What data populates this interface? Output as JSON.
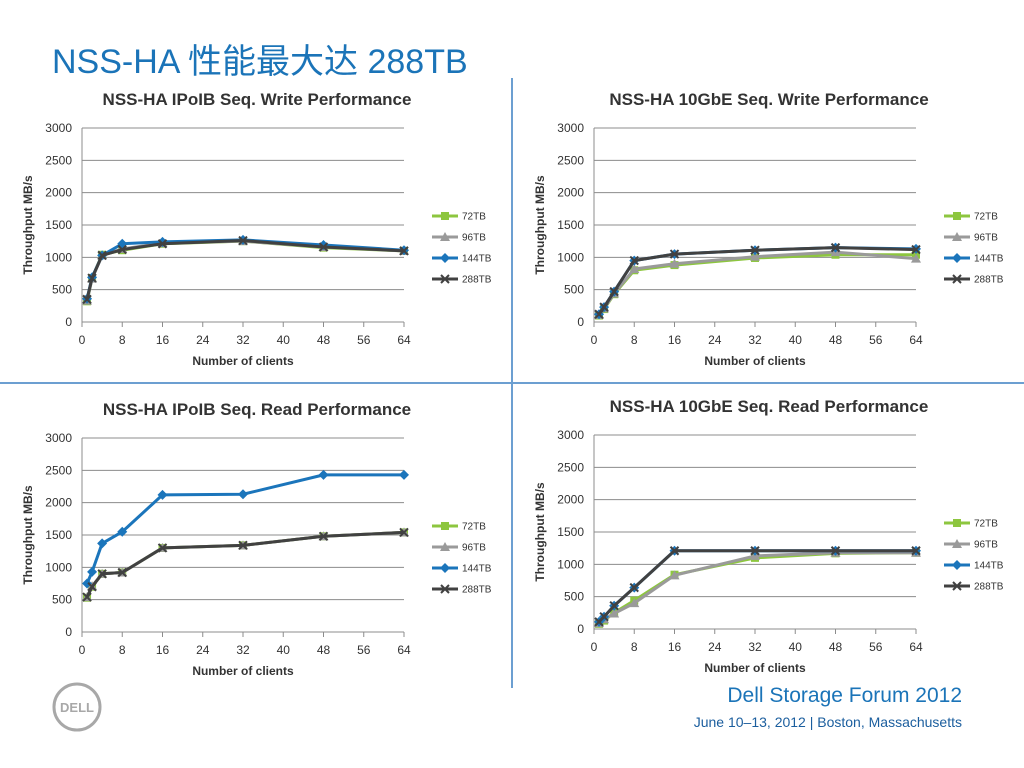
{
  "slide": {
    "title": "NSS-HA 性能最大达 288TB",
    "footer_title": "Dell Storage Forum 2012",
    "footer_subtitle": "June 10–13, 2012 | Boston, Massachusetts",
    "logo_text": "DELL"
  },
  "colors": {
    "72TB": "#8dc63f",
    "96TB": "#9a9a9a",
    "144TB": "#1b75bb",
    "288TB": "#414141",
    "accent": "#1b74b8"
  },
  "chart_data": [
    {
      "type": "line",
      "title": "NSS-HA IPoIB Seq. Write Performance",
      "xlabel": "Number of clients",
      "ylabel": "Throughput MB/s",
      "xlim": [
        0,
        64
      ],
      "ylim": [
        0,
        3000
      ],
      "xticks": [
        0,
        8,
        16,
        24,
        32,
        40,
        48,
        56,
        64
      ],
      "yticks": [
        0,
        500,
        1000,
        1500,
        2000,
        2500,
        3000
      ],
      "grid": true,
      "legend": "right",
      "x": [
        1,
        2,
        4,
        8,
        16,
        32,
        48,
        64
      ],
      "series": [
        {
          "name": "72TB",
          "values": [
            320,
            680,
            1040,
            1110,
            1210,
            1250,
            1150,
            1100
          ]
        },
        {
          "name": "96TB",
          "values": [
            330,
            670,
            1030,
            1130,
            1220,
            1250,
            1160,
            1100
          ]
        },
        {
          "name": "144TB",
          "values": [
            360,
            690,
            1030,
            1210,
            1240,
            1270,
            1190,
            1110
          ]
        },
        {
          "name": "288TB",
          "values": [
            350,
            680,
            1030,
            1120,
            1210,
            1260,
            1160,
            1100
          ]
        }
      ]
    },
    {
      "type": "line",
      "title": "NSS-HA 10GbE Seq. Write Performance",
      "xlabel": "Number of clients",
      "ylabel": "Throughput MB/s",
      "xlim": [
        0,
        64
      ],
      "ylim": [
        0,
        3000
      ],
      "xticks": [
        0,
        8,
        16,
        24,
        32,
        40,
        48,
        56,
        64
      ],
      "yticks": [
        0,
        500,
        1000,
        1500,
        2000,
        2500,
        3000
      ],
      "grid": true,
      "legend": "right",
      "x": [
        1,
        2,
        4,
        8,
        16,
        32,
        48,
        64
      ],
      "series": [
        {
          "name": "72TB",
          "values": [
            100,
            200,
            430,
            800,
            880,
            990,
            1040,
            1040
          ]
        },
        {
          "name": "96TB",
          "values": [
            110,
            210,
            440,
            820,
            900,
            1010,
            1080,
            980
          ]
        },
        {
          "name": "144TB",
          "values": [
            120,
            230,
            470,
            950,
            1050,
            1110,
            1150,
            1130
          ]
        },
        {
          "name": "288TB",
          "values": [
            120,
            230,
            470,
            950,
            1050,
            1110,
            1150,
            1120
          ]
        }
      ]
    },
    {
      "type": "line",
      "title": "NSS-HA IPoIB Seq. Read Performance",
      "xlabel": "Number of clients",
      "ylabel": "Throughput MB/s",
      "xlim": [
        0,
        64
      ],
      "ylim": [
        0,
        3000
      ],
      "xticks": [
        0,
        8,
        16,
        24,
        32,
        40,
        48,
        56,
        64
      ],
      "yticks": [
        0,
        500,
        1000,
        1500,
        2000,
        2500,
        3000
      ],
      "grid": true,
      "legend": "right",
      "x": [
        1,
        2,
        4,
        8,
        16,
        32,
        48,
        64
      ],
      "series": [
        {
          "name": "72TB",
          "values": [
            530,
            700,
            900,
            920,
            1300,
            1340,
            1480,
            1540
          ]
        },
        {
          "name": "96TB",
          "values": [
            540,
            710,
            900,
            920,
            1300,
            1340,
            1480,
            1540
          ]
        },
        {
          "name": "144TB",
          "values": [
            750,
            930,
            1370,
            1550,
            2120,
            2130,
            2430,
            2430
          ]
        },
        {
          "name": "288TB",
          "values": [
            540,
            700,
            900,
            920,
            1300,
            1340,
            1480,
            1540
          ]
        }
      ]
    },
    {
      "type": "line",
      "title": "NSS-HA 10GbE Seq. Read Performance",
      "xlabel": "Number of clients",
      "ylabel": "Throughput MB/s",
      "xlim": [
        0,
        64
      ],
      "ylim": [
        0,
        3000
      ],
      "xticks": [
        0,
        8,
        16,
        24,
        32,
        40,
        48,
        56,
        64
      ],
      "yticks": [
        0,
        500,
        1000,
        1500,
        2000,
        2500,
        3000
      ],
      "grid": true,
      "legend": "right",
      "x": [
        1,
        2,
        4,
        8,
        16,
        32,
        48,
        64
      ],
      "series": [
        {
          "name": "72TB",
          "values": [
            80,
            130,
            250,
            440,
            840,
            1100,
            1170,
            1180
          ]
        },
        {
          "name": "96TB",
          "values": [
            90,
            150,
            240,
            400,
            830,
            1130,
            1180,
            1180
          ]
        },
        {
          "name": "144TB",
          "values": [
            110,
            190,
            360,
            640,
            1210,
            1210,
            1210,
            1210
          ]
        },
        {
          "name": "288TB",
          "values": [
            110,
            190,
            360,
            640,
            1210,
            1210,
            1210,
            1210
          ]
        }
      ]
    }
  ]
}
